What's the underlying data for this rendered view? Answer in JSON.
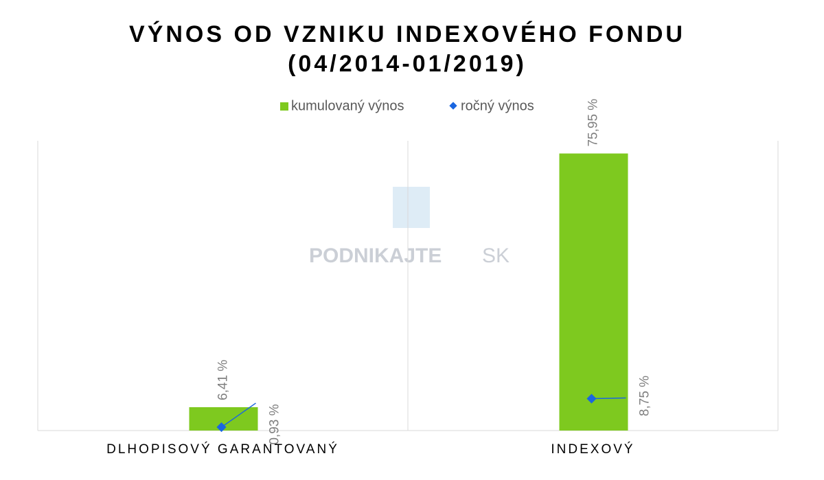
{
  "chart_data": {
    "type": "bar",
    "title": [
      "VÝNOS OD VZNIKU INDEXOVÉHO FONDU",
      "(04/2014-01/2019)"
    ],
    "watermark": [
      "PODNIKAJTE",
      "SK"
    ],
    "categories": [
      "DLHOPISOVÝ GARANTOVANÝ",
      "INDEXOVÝ"
    ],
    "series": [
      {
        "name": "kumulovaný výnos",
        "type": "bar",
        "color": "#7ec91f",
        "values": [
          6.41,
          75.95
        ],
        "value_labels": [
          "6,41 %",
          "75,95 %"
        ]
      },
      {
        "name": "ročný výnos",
        "type": "line",
        "color": "#1a66e0",
        "values": [
          0.93,
          8.75
        ],
        "value_labels": [
          "0,93 %",
          "8,75 %"
        ]
      }
    ],
    "ylim": [
      0,
      80
    ]
  }
}
